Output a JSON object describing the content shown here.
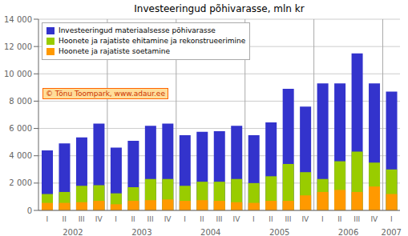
{
  "chart_data": {
    "type": "bar",
    "title": "Investeeringud põhivarasse, mln kr",
    "categories": [
      "I",
      "II",
      "III",
      "IV",
      "I",
      "II",
      "III",
      "IV",
      "I",
      "II",
      "III",
      "IV",
      "I",
      "II",
      "III",
      "IV",
      "I",
      "II",
      "III",
      "IV",
      "I"
    ],
    "x_groups": [
      "2002",
      "2003",
      "2004",
      "2005",
      "2006",
      "2007"
    ],
    "series": [
      {
        "name": "Investeeringud materiaalsesse põhivarasse",
        "color": "#3333cc",
        "values": [
          4400,
          4900,
          5350,
          6350,
          4600,
          5100,
          6200,
          6350,
          5500,
          5750,
          5800,
          6200,
          5500,
          6450,
          8900,
          7600,
          9300,
          9300,
          11500,
          9300,
          8700
        ]
      },
      {
        "name": "Hoonete ja rajatiste ehitamine ja rekonstrueerimine",
        "color": "#99cc00",
        "values": [
          1200,
          1350,
          1800,
          1850,
          1250,
          1700,
          2300,
          2300,
          1800,
          2100,
          2100,
          2300,
          2000,
          2500,
          3400,
          2800,
          2300,
          3600,
          4300,
          3500,
          3000
        ]
      },
      {
        "name": "Hoonete ja rajatiste soetamine",
        "color": "#ff9900",
        "values": [
          550,
          550,
          600,
          700,
          450,
          700,
          750,
          800,
          700,
          750,
          700,
          600,
          550,
          700,
          700,
          1100,
          1350,
          1500,
          1350,
          1750,
          1200
        ]
      }
    ],
    "stacked": false,
    "ylim": [
      0,
      14000
    ],
    "yticks": [
      0,
      {
        "value": 2000,
        "label": "2 000"
      },
      {
        "value": 4000,
        "label": "4 000"
      },
      {
        "value": 6000,
        "label": "6 000"
      },
      {
        "value": 8000,
        "label": "8 000"
      },
      {
        "value": 10000,
        "label": "10 000"
      },
      {
        "value": 12000,
        "label": "12 000"
      },
      {
        "value": 14000,
        "label": "14 000"
      }
    ],
    "grid": true,
    "legend": "upper left",
    "annotations": [
      {
        "text": "© Tõnu Toompark, www.adaur.ee"
      }
    ]
  }
}
